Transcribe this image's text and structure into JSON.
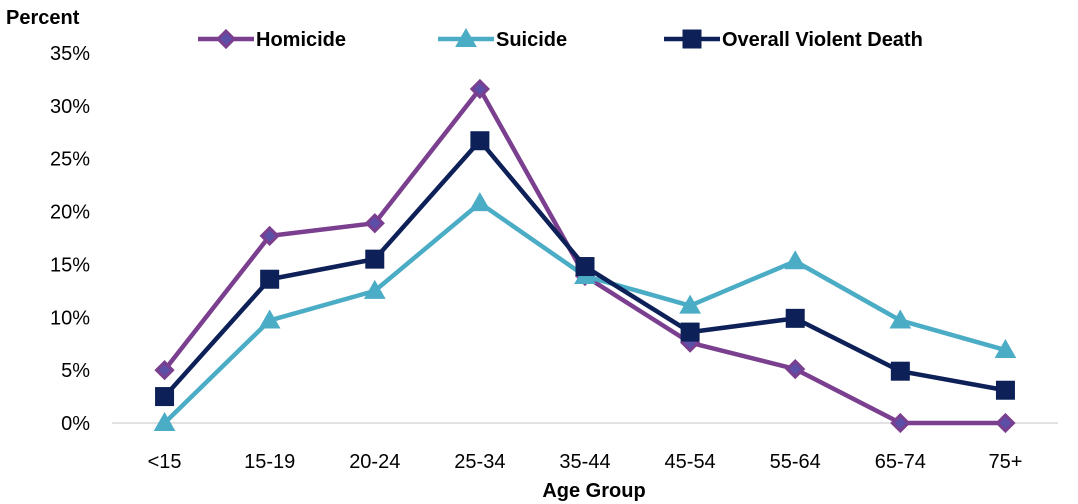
{
  "chart_data": {
    "type": "line",
    "title": "",
    "ylabel": "Percent",
    "xlabel": "Age Group",
    "categories": [
      "<15",
      "15-19",
      "20-24",
      "25-34",
      "35-44",
      "45-54",
      "55-64",
      "65-74",
      "75+"
    ],
    "ylim": [
      0,
      35
    ],
    "y_ticks": [
      "0%",
      "5%",
      "10%",
      "15%",
      "20%",
      "25%",
      "30%",
      "35%"
    ],
    "grid": false,
    "legend_position": "top",
    "series": [
      {
        "name": "Homicide",
        "color": "#7B3F8F",
        "marker": "diamond",
        "values": [
          5.0,
          17.7,
          18.9,
          31.6,
          13.9,
          7.6,
          5.1,
          0.0,
          0.0
        ]
      },
      {
        "name": "Suicide",
        "color": "#4BACC6",
        "marker": "triangle",
        "values": [
          0.0,
          9.7,
          12.5,
          20.8,
          13.9,
          11.1,
          15.3,
          9.7,
          6.9
        ]
      },
      {
        "name": "Overall Violent Death",
        "color": "#0D2058",
        "marker": "square",
        "values": [
          2.5,
          13.6,
          15.5,
          26.7,
          14.8,
          8.6,
          9.9,
          4.9,
          3.1
        ]
      }
    ]
  }
}
